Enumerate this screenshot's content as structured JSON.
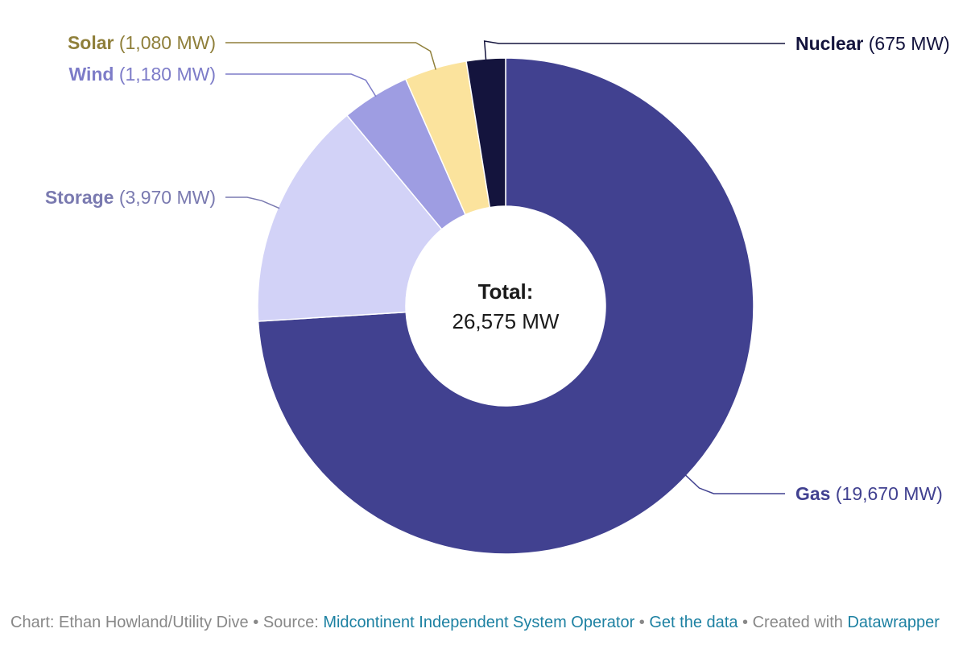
{
  "chart_data": {
    "type": "pie",
    "variant": "donut",
    "unit": "MW",
    "slices": [
      {
        "name": "Gas",
        "value": 19670,
        "value_label": "(19,670 MW)",
        "color": "#414190",
        "label_color": "#414190"
      },
      {
        "name": "Storage",
        "value": 3970,
        "value_label": "(3,970 MW)",
        "color": "#d2d2f7",
        "label_color": "#7a7ab0"
      },
      {
        "name": "Wind",
        "value": 1180,
        "value_label": "(1,180 MW)",
        "color": "#9e9de2",
        "label_color": "#7d7cc8"
      },
      {
        "name": "Solar",
        "value": 1080,
        "value_label": "(1,080 MW)",
        "color": "#fbe39d",
        "label_color": "#8f7f3a"
      },
      {
        "name": "Nuclear",
        "value": 675,
        "value_label": "(675 MW)",
        "color": "#14143d",
        "label_color": "#14143d"
      }
    ],
    "center": {
      "title": "Total:",
      "value": "26,575 MW"
    }
  },
  "footer": {
    "chart_credit": "Chart: Ethan Howland/Utility Dive",
    "sep": "•",
    "source_prefix": "Source:",
    "source_link": "Midcontinent Independent System Operator",
    "get_data": "Get the data",
    "created_with": "Created with",
    "tool": "Datawrapper"
  }
}
